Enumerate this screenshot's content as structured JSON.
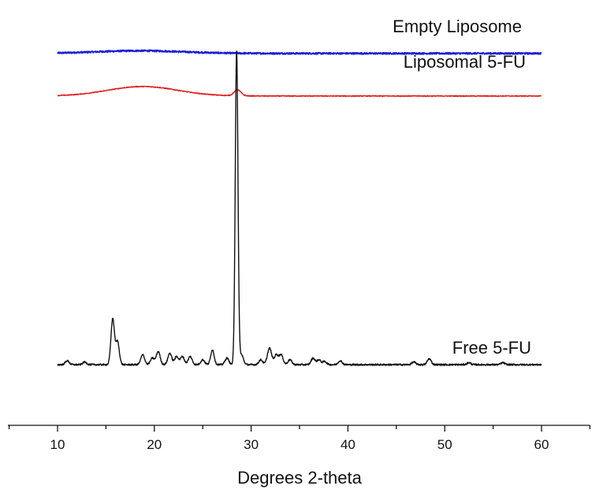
{
  "chart_data": {
    "type": "line",
    "xlabel": "Degrees 2-theta",
    "ylabel": "",
    "xlim": [
      5,
      65
    ],
    "ylim": [
      0,
      100
    ],
    "x_ticks": [
      10,
      20,
      30,
      40,
      50,
      60
    ],
    "grid": false,
    "legend": "none",
    "series": [
      {
        "name": "Empty Liposome",
        "color": "#1f1fd6",
        "baseline": 95,
        "noise": 0.25,
        "peaks": [
          {
            "x": 18.5,
            "height": 0.8,
            "width": 4.5
          }
        ]
      },
      {
        "name": "Liposomal 5-FU",
        "color": "#e01b1b",
        "baseline": 82,
        "noise": 0.12,
        "peaks": [
          {
            "x": 18.8,
            "height": 2.9,
            "width": 3.6
          },
          {
            "x": 28.6,
            "height": 1.8,
            "width": 0.35
          }
        ]
      },
      {
        "name": "Free 5-FU",
        "color": "#111111",
        "baseline": 0,
        "noise": 0.25,
        "peaks": [
          {
            "x": 11.0,
            "height": 1.2,
            "width": 0.2
          },
          {
            "x": 12.8,
            "height": 0.8,
            "width": 0.2
          },
          {
            "x": 15.7,
            "height": 14.0,
            "width": 0.18
          },
          {
            "x": 16.2,
            "height": 7.0,
            "width": 0.18
          },
          {
            "x": 18.8,
            "height": 3.0,
            "width": 0.2
          },
          {
            "x": 19.8,
            "height": 2.0,
            "width": 0.2
          },
          {
            "x": 20.4,
            "height": 4.0,
            "width": 0.2
          },
          {
            "x": 21.6,
            "height": 3.5,
            "width": 0.2
          },
          {
            "x": 22.3,
            "height": 2.5,
            "width": 0.2
          },
          {
            "x": 22.9,
            "height": 2.5,
            "width": 0.2
          },
          {
            "x": 23.7,
            "height": 2.5,
            "width": 0.2
          },
          {
            "x": 25.0,
            "height": 1.5,
            "width": 0.2
          },
          {
            "x": 26.0,
            "height": 4.5,
            "width": 0.18
          },
          {
            "x": 27.5,
            "height": 2.0,
            "width": 0.2
          },
          {
            "x": 28.5,
            "height": 96.0,
            "width": 0.14
          },
          {
            "x": 29.0,
            "height": 3.0,
            "width": 0.2
          },
          {
            "x": 31.0,
            "height": 1.5,
            "width": 0.2
          },
          {
            "x": 31.9,
            "height": 5.0,
            "width": 0.22
          },
          {
            "x": 32.6,
            "height": 3.0,
            "width": 0.2
          },
          {
            "x": 33.1,
            "height": 3.0,
            "width": 0.2
          },
          {
            "x": 34.0,
            "height": 1.5,
            "width": 0.2
          },
          {
            "x": 36.4,
            "height": 2.0,
            "width": 0.2
          },
          {
            "x": 37.0,
            "height": 1.5,
            "width": 0.2
          },
          {
            "x": 37.6,
            "height": 1.0,
            "width": 0.2
          },
          {
            "x": 39.2,
            "height": 1.2,
            "width": 0.2
          },
          {
            "x": 46.8,
            "height": 0.8,
            "width": 0.2
          },
          {
            "x": 48.4,
            "height": 1.8,
            "width": 0.2
          },
          {
            "x": 52.5,
            "height": 0.6,
            "width": 0.2
          },
          {
            "x": 56.0,
            "height": 0.6,
            "width": 0.2
          }
        ]
      }
    ]
  }
}
